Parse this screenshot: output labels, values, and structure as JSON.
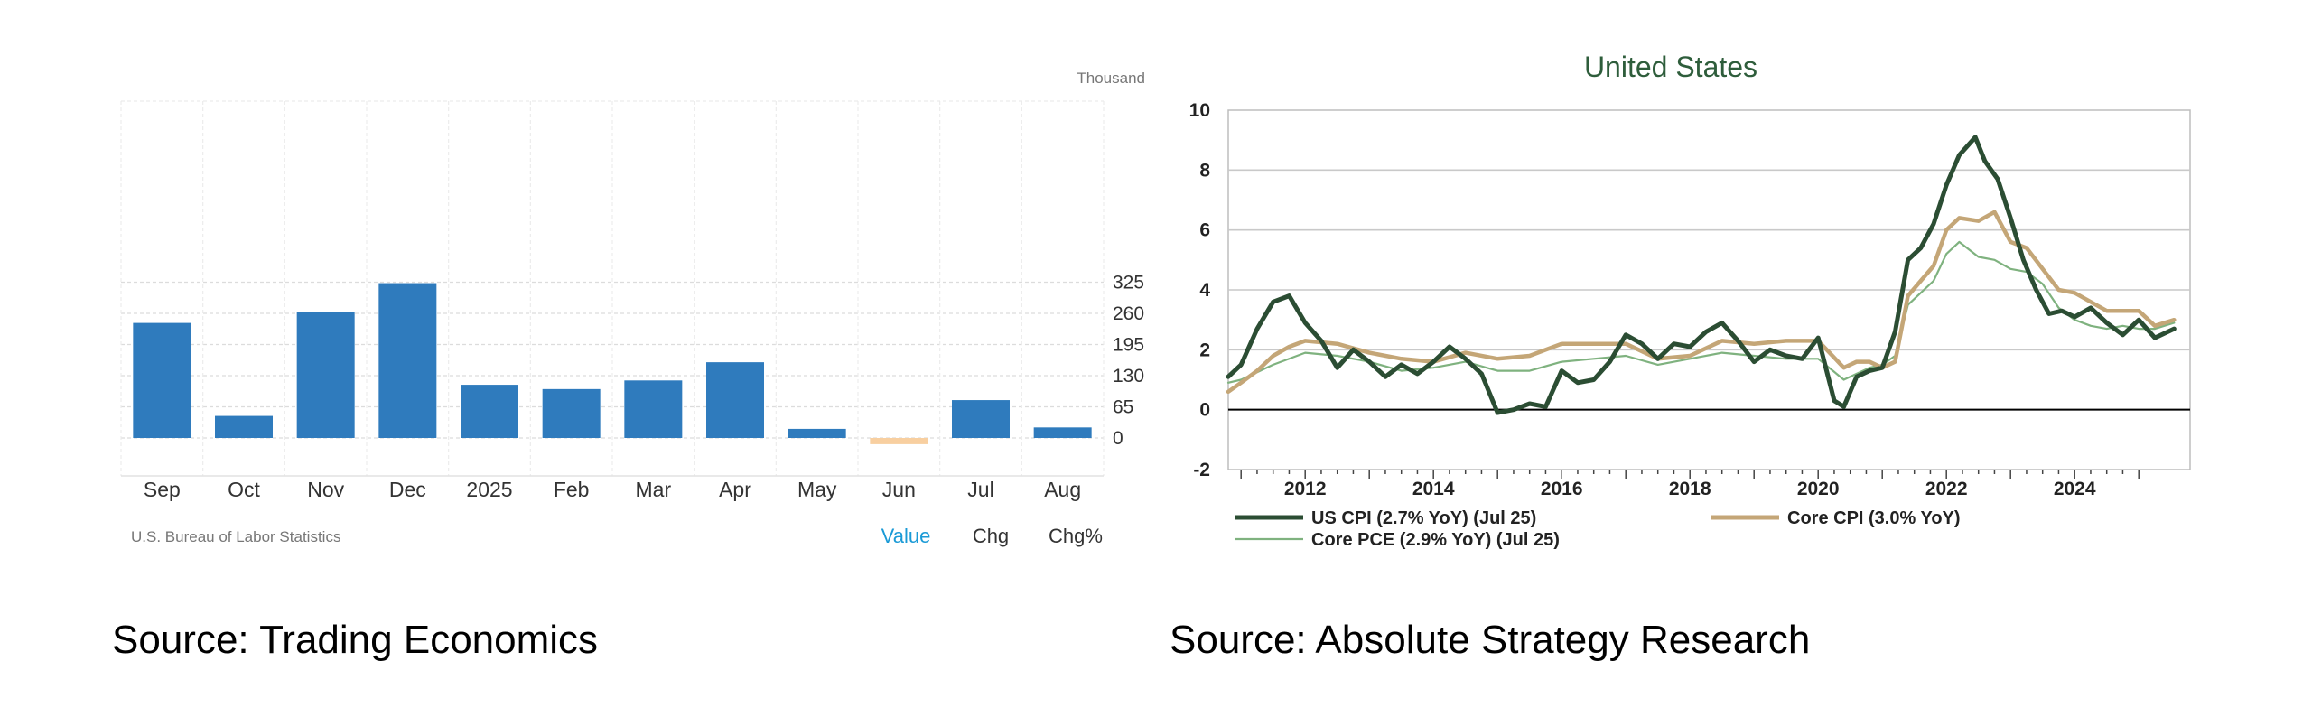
{
  "sources": {
    "left": "Source: Trading Economics",
    "right": "Source: Absolute Strategy Research"
  },
  "left_footer": {
    "attribution": "U.S. Bureau of Labor Statistics",
    "tabs": [
      "Value",
      "Chg",
      "Chg%"
    ],
    "active_tab": "Value"
  },
  "colors": {
    "bar": "#2f7bbd",
    "negative_bar": "#f8cfa0",
    "active_tab": "#1a9ad6",
    "right_title": "#2e5d3b",
    "us_cpi": "#2b4d33",
    "core_cpi": "#c4a677",
    "core_pce": "#7fb27f"
  },
  "chart_data": [
    {
      "type": "bar",
      "units": "Thousand",
      "categories": [
        "Sep",
        "Oct",
        "Nov",
        "Dec",
        "2025",
        "Feb",
        "Mar",
        "Apr",
        "May",
        "Jun",
        "Jul",
        "Aug"
      ],
      "values": [
        240,
        46,
        263,
        323,
        111,
        102,
        120,
        158,
        19,
        -13,
        79,
        22
      ],
      "ylim": [
        -40,
        350
      ],
      "yticks": [
        0,
        65,
        130,
        195,
        260,
        325
      ],
      "ytick_labels": [
        "0",
        "65",
        "130",
        "195",
        "260",
        "325"
      ],
      "grid": true
    },
    {
      "type": "line",
      "title": "United States",
      "xlim": [
        2010.8,
        2025.8
      ],
      "ylim": [
        -2,
        10
      ],
      "xticks": [
        2012,
        2014,
        2016,
        2018,
        2020,
        2022,
        2024
      ],
      "xtick_labels": [
        "2012",
        "2014",
        "2016",
        "2018",
        "2020",
        "2022",
        "2024"
      ],
      "yticks": [
        -2,
        0,
        2,
        4,
        6,
        8,
        10
      ],
      "ytick_labels": [
        "-2",
        "0",
        "2",
        "4",
        "6",
        "8",
        "10"
      ],
      "grid": true,
      "legend_position": "bottom",
      "series": [
        {
          "name": "US CPI (2.7% YoY) (Jul 25)",
          "x": [
            2010.8,
            2011.0,
            2011.25,
            2011.5,
            2011.75,
            2012.0,
            2012.25,
            2012.5,
            2012.75,
            2013.0,
            2013.25,
            2013.5,
            2013.75,
            2014.0,
            2014.25,
            2014.5,
            2014.75,
            2015.0,
            2015.25,
            2015.5,
            2015.75,
            2016.0,
            2016.25,
            2016.5,
            2016.75,
            2017.0,
            2017.25,
            2017.5,
            2017.75,
            2018.0,
            2018.25,
            2018.5,
            2018.75,
            2019.0,
            2019.25,
            2019.5,
            2019.75,
            2020.0,
            2020.25,
            2020.4,
            2020.6,
            2020.8,
            2021.0,
            2021.2,
            2021.4,
            2021.6,
            2021.8,
            2022.0,
            2022.2,
            2022.45,
            2022.6,
            2022.8,
            2023.0,
            2023.2,
            2023.4,
            2023.6,
            2023.8,
            2024.0,
            2024.25,
            2024.5,
            2024.75,
            2025.0,
            2025.25,
            2025.55
          ],
          "y": [
            1.1,
            1.5,
            2.7,
            3.6,
            3.8,
            2.9,
            2.3,
            1.4,
            2.0,
            1.6,
            1.1,
            1.5,
            1.2,
            1.6,
            2.1,
            1.7,
            1.2,
            -0.1,
            0.0,
            0.2,
            0.1,
            1.3,
            0.9,
            1.0,
            1.6,
            2.5,
            2.2,
            1.7,
            2.2,
            2.1,
            2.6,
            2.9,
            2.3,
            1.6,
            2.0,
            1.8,
            1.7,
            2.4,
            0.3,
            0.1,
            1.1,
            1.3,
            1.4,
            2.6,
            5.0,
            5.4,
            6.2,
            7.5,
            8.5,
            9.1,
            8.3,
            7.7,
            6.4,
            5.0,
            4.0,
            3.2,
            3.3,
            3.1,
            3.4,
            2.9,
            2.5,
            3.0,
            2.4,
            2.7
          ]
        },
        {
          "name": "Core CPI (3.0% YoY)",
          "x": [
            2010.8,
            2011.0,
            2011.25,
            2011.5,
            2011.75,
            2012.0,
            2012.5,
            2013.0,
            2013.5,
            2014.0,
            2014.5,
            2015.0,
            2015.5,
            2016.0,
            2016.5,
            2017.0,
            2017.5,
            2018.0,
            2018.5,
            2019.0,
            2019.5,
            2020.0,
            2020.4,
            2020.6,
            2020.8,
            2021.0,
            2021.2,
            2021.4,
            2021.6,
            2021.8,
            2022.0,
            2022.2,
            2022.5,
            2022.75,
            2023.0,
            2023.25,
            2023.5,
            2023.75,
            2024.0,
            2024.25,
            2024.5,
            2024.75,
            2025.0,
            2025.25,
            2025.55
          ],
          "y": [
            0.6,
            0.9,
            1.3,
            1.8,
            2.1,
            2.3,
            2.2,
            1.9,
            1.7,
            1.6,
            1.9,
            1.7,
            1.8,
            2.2,
            2.2,
            2.2,
            1.7,
            1.8,
            2.3,
            2.2,
            2.3,
            2.3,
            1.4,
            1.6,
            1.6,
            1.4,
            1.6,
            3.8,
            4.3,
            4.8,
            6.0,
            6.4,
            6.3,
            6.6,
            5.6,
            5.4,
            4.7,
            4.0,
            3.9,
            3.6,
            3.3,
            3.3,
            3.3,
            2.8,
            3.0
          ]
        },
        {
          "name": "Core PCE (2.9% YoY) (Jul 25)",
          "x": [
            2010.8,
            2011.0,
            2011.5,
            2012.0,
            2012.5,
            2013.0,
            2013.5,
            2014.0,
            2014.5,
            2015.0,
            2015.5,
            2016.0,
            2016.5,
            2017.0,
            2017.5,
            2018.0,
            2018.5,
            2019.0,
            2019.5,
            2020.0,
            2020.4,
            2020.6,
            2020.8,
            2021.0,
            2021.2,
            2021.4,
            2021.6,
            2021.8,
            2022.0,
            2022.2,
            2022.5,
            2022.75,
            2023.0,
            2023.25,
            2023.5,
            2023.75,
            2024.0,
            2024.25,
            2024.5,
            2024.75,
            2025.0,
            2025.25,
            2025.55
          ],
          "y": [
            0.9,
            1.0,
            1.5,
            1.9,
            1.8,
            1.6,
            1.3,
            1.4,
            1.6,
            1.3,
            1.3,
            1.6,
            1.7,
            1.8,
            1.5,
            1.7,
            1.9,
            1.8,
            1.7,
            1.7,
            1.0,
            1.2,
            1.4,
            1.5,
            1.8,
            3.5,
            3.9,
            4.3,
            5.2,
            5.6,
            5.1,
            5.0,
            4.7,
            4.6,
            4.2,
            3.4,
            3.0,
            2.8,
            2.7,
            2.8,
            2.7,
            2.7,
            2.9
          ]
        }
      ]
    }
  ]
}
